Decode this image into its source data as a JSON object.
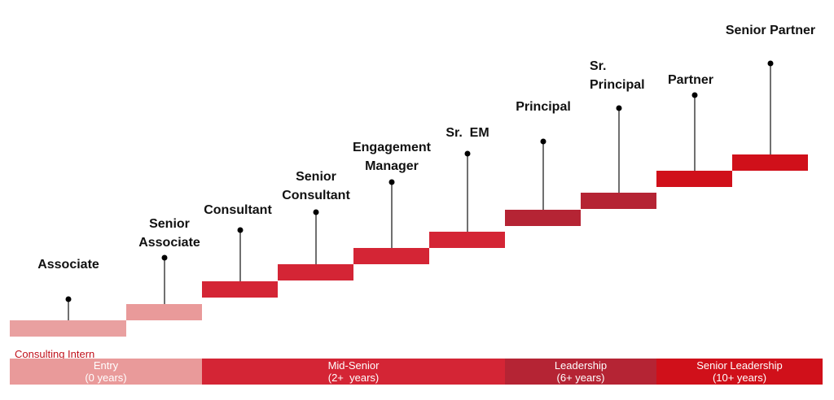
{
  "steps": [
    {
      "label": [
        "Associate"
      ]
    },
    {
      "label": [
        "Senior",
        "Associate"
      ]
    },
    {
      "label": [
        "Consultant"
      ]
    },
    {
      "label": [
        "Senior",
        "Consultant"
      ]
    },
    {
      "label": [
        "Engagement",
        "Manager"
      ]
    },
    {
      "label": [
        "Sr.  EM"
      ]
    },
    {
      "label": [
        "Principal"
      ]
    },
    {
      "label": [
        "Sr.",
        "Principal"
      ]
    },
    {
      "label": [
        "Partner"
      ]
    },
    {
      "label": [
        "Senior Partner"
      ]
    }
  ],
  "intern_label": "Consulting Intern",
  "bands": [
    {
      "label": [
        "Entry",
        "(0 years)"
      ]
    },
    {
      "label": [
        "Mid-Senior",
        "(2+  years)"
      ]
    },
    {
      "label": [
        "Leadership",
        "(6+ years)"
      ]
    },
    {
      "label": [
        "Senior Leadership",
        "(10+ years)"
      ]
    }
  ]
}
